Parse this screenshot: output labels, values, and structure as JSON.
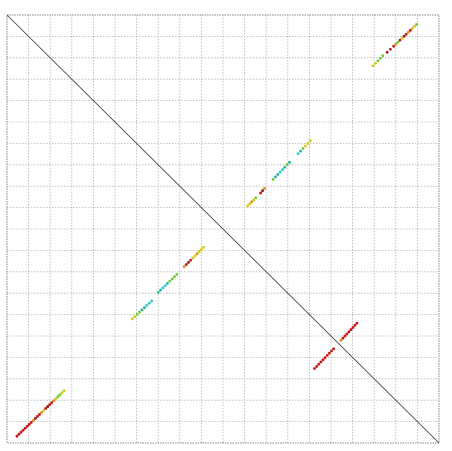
{
  "chart_data": {
    "type": "scatter",
    "title": "",
    "xlabel": "",
    "ylabel": "",
    "xlim": [
      0,
      100
    ],
    "ylim": [
      0,
      100
    ],
    "grid": true,
    "grid_style": "dotted",
    "grid_color": "#b4b4b4",
    "frame_color": "#888888",
    "diagonal": {
      "from": [
        0,
        100
      ],
      "to": [
        100,
        0
      ],
      "color": "#333333"
    },
    "colors": {
      "red": "#c81414",
      "darkred": "#961414",
      "orange": "#dc8c14",
      "yellow": "#d2c814",
      "green": "#6ec832",
      "teal": "#1eb4a0",
      "cyan": "#28c8d2"
    },
    "segments": [
      {
        "start": [
          2.3,
          1.6
        ],
        "end": [
          13.2,
          12.2
        ],
        "colors": [
          "red",
          "red",
          "red",
          "red",
          "darkred",
          "red",
          "red",
          "red",
          "orange",
          "darkred",
          "red",
          "red",
          "orange",
          "yellow",
          "red",
          "darkred",
          "red",
          "red",
          "orange",
          "yellow",
          "green",
          "green",
          "yellow",
          "yellow"
        ]
      },
      {
        "start": [
          29.0,
          29.0
        ],
        "end": [
          33.5,
          33.2
        ],
        "colors": [
          "yellow",
          "yellow",
          "green",
          "green",
          "teal",
          "teal",
          "cyan",
          "cyan",
          "cyan"
        ]
      },
      {
        "start": [
          35.0,
          35.2
        ],
        "end": [
          39.3,
          39.4
        ],
        "colors": [
          "teal",
          "teal",
          "cyan",
          "cyan",
          "teal",
          "green",
          "green",
          "green",
          "green"
        ]
      },
      {
        "start": [
          41.0,
          41.2
        ],
        "end": [
          45.5,
          45.7
        ],
        "colors": [
          "orange",
          "red",
          "darkred",
          "red",
          "yellow",
          "yellow",
          "orange",
          "yellow",
          "yellow",
          "yellow"
        ]
      },
      {
        "start": [
          55.7,
          55.4
        ],
        "end": [
          57.6,
          57.3
        ],
        "colors": [
          "yellow",
          "yellow",
          "orange",
          "yellow",
          "green"
        ]
      },
      {
        "start": [
          58.7,
          58.4
        ],
        "end": [
          59.6,
          59.5
        ],
        "colors": [
          "red",
          "darkred",
          "orange"
        ]
      },
      {
        "start": [
          61.6,
          61.6
        ],
        "end": [
          65.4,
          65.6
        ],
        "colors": [
          "green",
          "teal",
          "teal",
          "cyan",
          "cyan",
          "teal",
          "green",
          "teal"
        ]
      },
      {
        "start": [
          67.4,
          67.6
        ],
        "end": [
          70.2,
          70.6
        ],
        "colors": [
          "cyan",
          "teal",
          "green",
          "yellow",
          "yellow",
          "yellow"
        ]
      },
      {
        "start": [
          71.2,
          17.4
        ],
        "end": [
          75.6,
          22.0
        ],
        "colors": [
          "red",
          "red",
          "red",
          "red",
          "red",
          "red",
          "red",
          "red",
          "red",
          "red"
        ]
      },
      {
        "start": [
          77.3,
          24.0
        ],
        "end": [
          81.0,
          28.0
        ],
        "colors": [
          "orange",
          "red",
          "red",
          "red",
          "red",
          "red",
          "red",
          "red",
          "red"
        ]
      },
      {
        "start": [
          84.7,
          88.1
        ],
        "end": [
          87.0,
          90.5
        ],
        "colors": [
          "yellow",
          "yellow",
          "green",
          "green",
          "green"
        ]
      },
      {
        "start": [
          88.0,
          91.3
        ],
        "end": [
          89.5,
          92.7
        ],
        "colors": [
          "darkred",
          "red",
          "red"
        ]
      },
      {
        "start": [
          90.0,
          93.2
        ],
        "end": [
          94.8,
          97.8
        ],
        "colors": [
          "orange",
          "green",
          "red",
          "yellow",
          "darkred",
          "red",
          "orange",
          "red",
          "yellow",
          "yellow",
          "green"
        ]
      }
    ]
  }
}
